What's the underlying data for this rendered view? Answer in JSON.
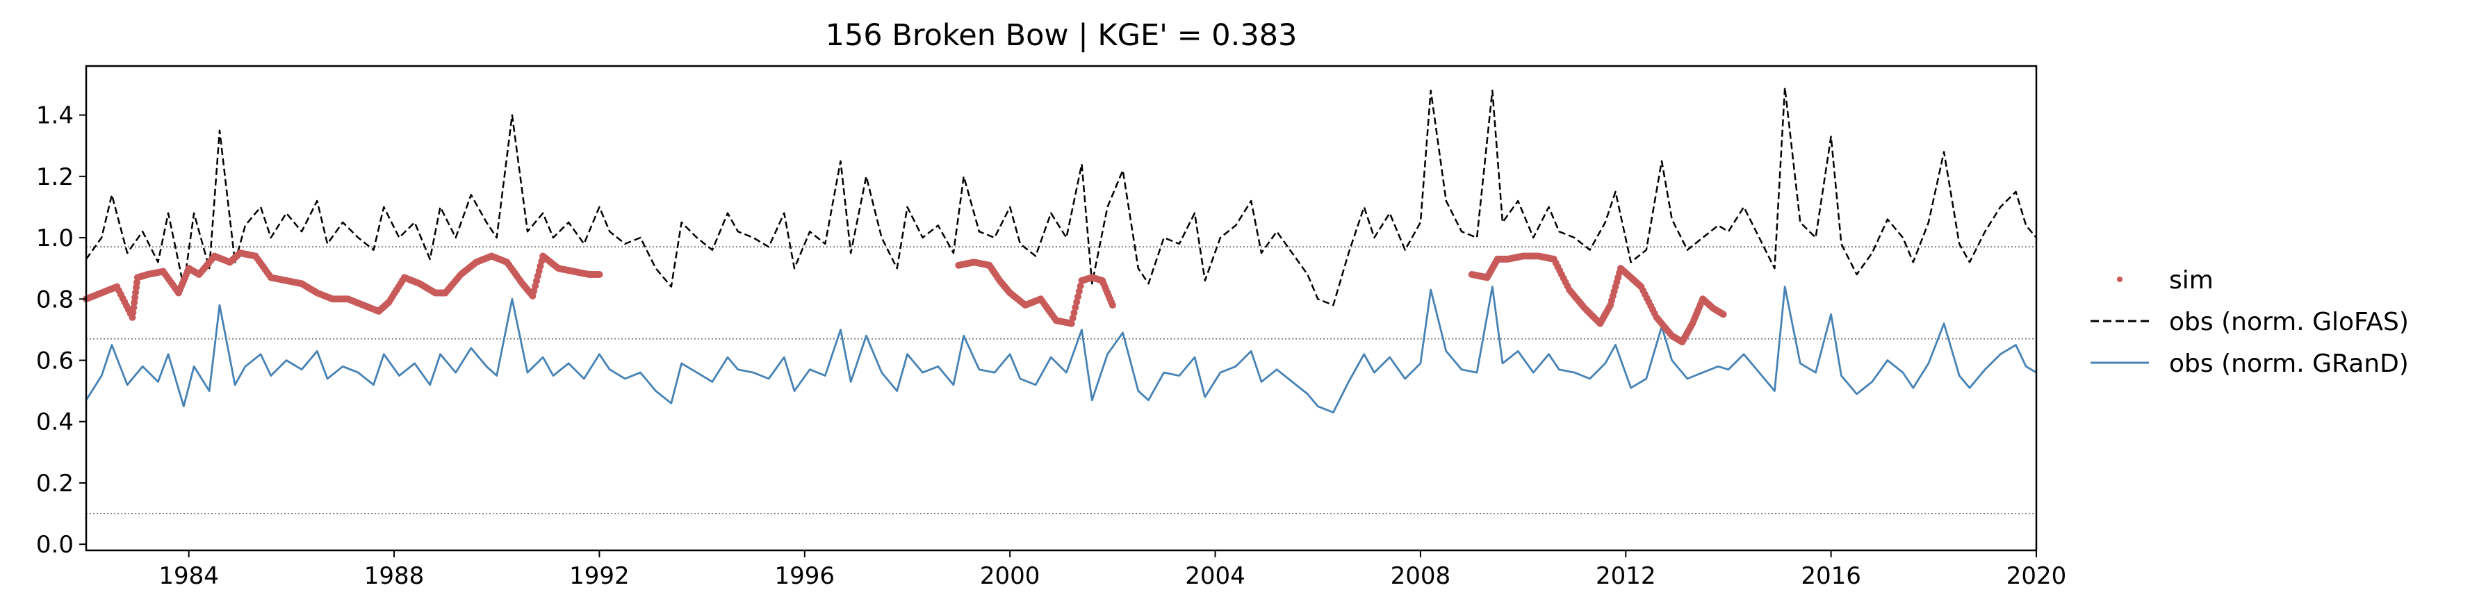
{
  "chart_data": {
    "type": "line",
    "title": "156  Broken Bow | KGE' = 0.383",
    "xlabel": "",
    "ylabel": "",
    "xlim": [
      1982.0,
      2020.0
    ],
    "ylim": [
      -0.02,
      1.56
    ],
    "x_ticks": [
      1984,
      1988,
      1992,
      1996,
      2000,
      2004,
      2008,
      2012,
      2016,
      2020
    ],
    "y_ticks": [
      0.0,
      0.2,
      0.4,
      0.6,
      0.8,
      1.0,
      1.2,
      1.4
    ],
    "y_tick_labels": [
      "0.0",
      "0.2",
      "0.4",
      "0.6",
      "0.8",
      "1.0",
      "1.2",
      "1.4"
    ],
    "reference_lines": [
      0.1,
      0.67,
      0.97
    ],
    "legend_position": "right",
    "series": [
      {
        "name": "sim",
        "style": "points",
        "color": "#c85a5a",
        "segments": [
          {
            "x": [
              1982.0,
              1982.3,
              1982.6,
              1982.9,
              1983.0,
              1983.2,
              1983.5,
              1983.8,
              1984.0,
              1984.2,
              1984.5,
              1984.8,
              1985.0,
              1985.3,
              1985.6,
              1985.9,
              1986.2,
              1986.5,
              1986.8,
              1987.1,
              1987.4,
              1987.7,
              1987.9,
              1988.2,
              1988.5,
              1988.8,
              1989.0,
              1989.3,
              1989.6,
              1989.9,
              1990.2,
              1990.5,
              1990.7,
              1990.9,
              1991.2,
              1991.5,
              1991.8,
              1992.0
            ],
            "y": [
              0.8,
              0.82,
              0.84,
              0.74,
              0.87,
              0.88,
              0.89,
              0.82,
              0.9,
              0.88,
              0.94,
              0.92,
              0.95,
              0.94,
              0.87,
              0.86,
              0.85,
              0.82,
              0.8,
              0.8,
              0.78,
              0.76,
              0.79,
              0.87,
              0.85,
              0.82,
              0.82,
              0.88,
              0.92,
              0.94,
              0.92,
              0.85,
              0.81,
              0.94,
              0.9,
              0.89,
              0.88,
              0.88
            ]
          },
          {
            "x": [
              1999.0,
              1999.3,
              1999.6,
              1999.8,
              2000.0,
              2000.3,
              2000.6,
              2000.9,
              2001.2,
              2001.4,
              2001.6,
              2001.8,
              2002.0
            ],
            "y": [
              0.91,
              0.92,
              0.91,
              0.86,
              0.82,
              0.78,
              0.8,
              0.73,
              0.72,
              0.86,
              0.87,
              0.86,
              0.78
            ]
          },
          {
            "x": [
              2009.0,
              2009.3,
              2009.5,
              2009.7,
              2010.0,
              2010.3,
              2010.6,
              2010.9,
              2011.2,
              2011.5,
              2011.7,
              2011.9,
              2012.1,
              2012.3,
              2012.6,
              2012.9,
              2013.1,
              2013.3,
              2013.5,
              2013.7,
              2013.9
            ],
            "y": [
              0.88,
              0.87,
              0.93,
              0.93,
              0.94,
              0.94,
              0.93,
              0.83,
              0.77,
              0.72,
              0.78,
              0.9,
              0.87,
              0.84,
              0.74,
              0.68,
              0.66,
              0.72,
              0.8,
              0.77,
              0.75
            ]
          }
        ]
      },
      {
        "name": "obs (norm. GloFAS)",
        "style": "dashed",
        "color": "#000000",
        "x": [
          1982.0,
          1982.3,
          1982.5,
          1982.8,
          1983.1,
          1983.4,
          1983.6,
          1983.9,
          1984.1,
          1984.4,
          1984.6,
          1984.9,
          1985.1,
          1985.4,
          1985.6,
          1985.9,
          1986.2,
          1986.5,
          1986.7,
          1987.0,
          1987.3,
          1987.6,
          1987.8,
          1988.1,
          1988.4,
          1988.7,
          1988.9,
          1989.2,
          1989.5,
          1989.8,
          1990.0,
          1990.3,
          1990.6,
          1990.9,
          1991.1,
          1991.4,
          1991.7,
          1992.0,
          1992.2,
          1992.5,
          1992.8,
          1993.1,
          1993.4,
          1993.6,
          1993.9,
          1994.2,
          1994.5,
          1994.7,
          1995.0,
          1995.3,
          1995.6,
          1995.8,
          1996.1,
          1996.4,
          1996.7,
          1996.9,
          1997.2,
          1997.5,
          1997.8,
          1998.0,
          1998.3,
          1998.6,
          1998.9,
          1999.1,
          1999.4,
          1999.7,
          2000.0,
          2000.2,
          2000.5,
          2000.8,
          2001.1,
          2001.4,
          2001.6,
          2001.9,
          2002.2,
          2002.5,
          2002.7,
          2003.0,
          2003.3,
          2003.6,
          2003.8,
          2004.1,
          2004.4,
          2004.7,
          2004.9,
          2005.2,
          2005.5,
          2005.8,
          2006.0,
          2006.3,
          2006.6,
          2006.9,
          2007.1,
          2007.4,
          2007.7,
          2008.0,
          2008.2,
          2008.5,
          2008.8,
          2009.1,
          2009.4,
          2009.6,
          2009.9,
          2010.2,
          2010.5,
          2010.7,
          2011.0,
          2011.3,
          2011.6,
          2011.8,
          2012.1,
          2012.4,
          2012.7,
          2012.9,
          2013.2,
          2013.5,
          2013.8,
          2014.0,
          2014.3,
          2014.6,
          2014.9,
          2015.1,
          2015.4,
          2015.7,
          2016.0,
          2016.2,
          2016.5,
          2016.8,
          2017.1,
          2017.4,
          2017.6,
          2017.9,
          2018.2,
          2018.5,
          2018.7,
          2019.0,
          2019.3,
          2019.6,
          2019.8,
          2020.0
        ],
        "y": [
          0.93,
          1.0,
          1.14,
          0.95,
          1.02,
          0.92,
          1.08,
          0.84,
          1.08,
          0.9,
          1.35,
          0.92,
          1.04,
          1.1,
          1.0,
          1.08,
          1.02,
          1.12,
          0.98,
          1.05,
          1.0,
          0.96,
          1.1,
          1.0,
          1.05,
          0.93,
          1.1,
          1.0,
          1.14,
          1.05,
          1.0,
          1.4,
          1.02,
          1.08,
          1.0,
          1.05,
          0.98,
          1.1,
          1.02,
          0.98,
          1.0,
          0.9,
          0.84,
          1.05,
          1.0,
          0.96,
          1.08,
          1.02,
          1.0,
          0.97,
          1.08,
          0.9,
          1.02,
          0.98,
          1.25,
          0.95,
          1.2,
          1.0,
          0.9,
          1.1,
          1.0,
          1.04,
          0.95,
          1.2,
          1.02,
          1.0,
          1.1,
          0.98,
          0.94,
          1.08,
          1.0,
          1.24,
          0.85,
          1.1,
          1.22,
          0.9,
          0.85,
          1.0,
          0.98,
          1.08,
          0.86,
          1.0,
          1.04,
          1.12,
          0.95,
          1.02,
          0.95,
          0.88,
          0.8,
          0.78,
          0.95,
          1.1,
          1.0,
          1.08,
          0.96,
          1.05,
          1.48,
          1.12,
          1.02,
          1.0,
          1.48,
          1.05,
          1.12,
          1.0,
          1.1,
          1.02,
          1.0,
          0.96,
          1.05,
          1.15,
          0.92,
          0.96,
          1.25,
          1.06,
          0.96,
          1.0,
          1.04,
          1.02,
          1.1,
          1.0,
          0.9,
          1.49,
          1.05,
          1.0,
          1.33,
          0.98,
          0.88,
          0.95,
          1.06,
          1.0,
          0.92,
          1.05,
          1.28,
          0.98,
          0.92,
          1.02,
          1.1,
          1.15,
          1.04,
          1.0
        ]
      },
      {
        "name": "obs (norm. GRanD)",
        "style": "solid",
        "color": "#4682b4",
        "x": [
          1982.0,
          1982.3,
          1982.5,
          1982.8,
          1983.1,
          1983.4,
          1983.6,
          1983.9,
          1984.1,
          1984.4,
          1984.6,
          1984.9,
          1985.1,
          1985.4,
          1985.6,
          1985.9,
          1986.2,
          1986.5,
          1986.7,
          1987.0,
          1987.3,
          1987.6,
          1987.8,
          1988.1,
          1988.4,
          1988.7,
          1988.9,
          1989.2,
          1989.5,
          1989.8,
          1990.0,
          1990.3,
          1990.6,
          1990.9,
          1991.1,
          1991.4,
          1991.7,
          1992.0,
          1992.2,
          1992.5,
          1992.8,
          1993.1,
          1993.4,
          1993.6,
          1993.9,
          1994.2,
          1994.5,
          1994.7,
          1995.0,
          1995.3,
          1995.6,
          1995.8,
          1996.1,
          1996.4,
          1996.7,
          1996.9,
          1997.2,
          1997.5,
          1997.8,
          1998.0,
          1998.3,
          1998.6,
          1998.9,
          1999.1,
          1999.4,
          1999.7,
          2000.0,
          2000.2,
          2000.5,
          2000.8,
          2001.1,
          2001.4,
          2001.6,
          2001.9,
          2002.2,
          2002.5,
          2002.7,
          2003.0,
          2003.3,
          2003.6,
          2003.8,
          2004.1,
          2004.4,
          2004.7,
          2004.9,
          2005.2,
          2005.5,
          2005.8,
          2006.0,
          2006.3,
          2006.6,
          2006.9,
          2007.1,
          2007.4,
          2007.7,
          2008.0,
          2008.2,
          2008.5,
          2008.8,
          2009.1,
          2009.4,
          2009.6,
          2009.9,
          2010.2,
          2010.5,
          2010.7,
          2011.0,
          2011.3,
          2011.6,
          2011.8,
          2012.1,
          2012.4,
          2012.7,
          2012.9,
          2013.2,
          2013.5,
          2013.8,
          2014.0,
          2014.3,
          2014.6,
          2014.9,
          2015.1,
          2015.4,
          2015.7,
          2016.0,
          2016.2,
          2016.5,
          2016.8,
          2017.1,
          2017.4,
          2017.6,
          2017.9,
          2018.2,
          2018.5,
          2018.7,
          2019.0,
          2019.3,
          2019.6,
          2019.8,
          2020.0
        ],
        "y": [
          0.47,
          0.55,
          0.65,
          0.52,
          0.58,
          0.53,
          0.62,
          0.45,
          0.58,
          0.5,
          0.78,
          0.52,
          0.58,
          0.62,
          0.55,
          0.6,
          0.57,
          0.63,
          0.54,
          0.58,
          0.56,
          0.52,
          0.62,
          0.55,
          0.59,
          0.52,
          0.62,
          0.56,
          0.64,
          0.58,
          0.55,
          0.8,
          0.56,
          0.61,
          0.55,
          0.59,
          0.54,
          0.62,
          0.57,
          0.54,
          0.56,
          0.5,
          0.46,
          0.59,
          0.56,
          0.53,
          0.61,
          0.57,
          0.56,
          0.54,
          0.61,
          0.5,
          0.57,
          0.55,
          0.7,
          0.53,
          0.68,
          0.56,
          0.5,
          0.62,
          0.56,
          0.58,
          0.52,
          0.68,
          0.57,
          0.56,
          0.62,
          0.54,
          0.52,
          0.61,
          0.56,
          0.7,
          0.47,
          0.62,
          0.69,
          0.5,
          0.47,
          0.56,
          0.55,
          0.61,
          0.48,
          0.56,
          0.58,
          0.63,
          0.53,
          0.57,
          0.53,
          0.49,
          0.45,
          0.43,
          0.53,
          0.62,
          0.56,
          0.61,
          0.54,
          0.59,
          0.83,
          0.63,
          0.57,
          0.56,
          0.84,
          0.59,
          0.63,
          0.56,
          0.62,
          0.57,
          0.56,
          0.54,
          0.59,
          0.65,
          0.51,
          0.54,
          0.71,
          0.6,
          0.54,
          0.56,
          0.58,
          0.57,
          0.62,
          0.56,
          0.5,
          0.84,
          0.59,
          0.56,
          0.75,
          0.55,
          0.49,
          0.53,
          0.6,
          0.56,
          0.51,
          0.59,
          0.72,
          0.55,
          0.51,
          0.57,
          0.62,
          0.65,
          0.58,
          0.56
        ]
      }
    ]
  }
}
